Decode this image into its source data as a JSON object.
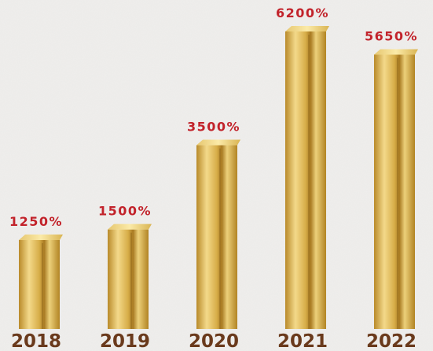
{
  "chart_data": {
    "type": "bar",
    "categories": [
      "2018",
      "2019",
      "2020",
      "2021",
      "2022"
    ],
    "values": [
      1250,
      1500,
      3500,
      6200,
      5650
    ],
    "value_labels": [
      "1250%",
      "1500%",
      "3500%",
      "6200%",
      "5650%"
    ],
    "color": "#d9b14a"
  }
}
